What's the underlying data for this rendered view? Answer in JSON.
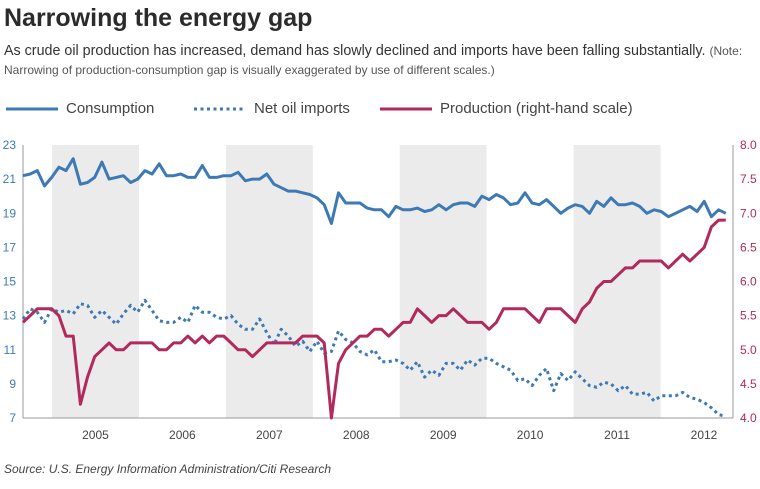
{
  "header": {
    "title": "Narrowing the energy gap",
    "subtitle_main": "As crude oil production has increased, demand has slowly declined and imports have been falling substantially.",
    "subtitle_note": "(Note: Narrowing of production-consumption gap is visually exaggerated by use of different scales.)"
  },
  "legend": {
    "consumption": "Consumption",
    "imports": "Net oil imports",
    "production": "Production (right-hand scale)"
  },
  "source": "Source: U.S. Energy Information Administration/Citi Research",
  "colors": {
    "consumption": "#3d7ab5",
    "imports": "#3d7ab5",
    "production": "#b22a5c",
    "left_axis": "#3d7ab5",
    "right_axis": "#b22a5c",
    "band": "#ebebeb"
  },
  "chart_data": {
    "type": "line",
    "x_start": "2004-09",
    "x_end": "2012-10",
    "x_ticks": [
      "2005",
      "2006",
      "2007",
      "2008",
      "2009",
      "2010",
      "2011",
      "2012"
    ],
    "shaded_years": [
      "2005",
      "2007",
      "2009",
      "2011"
    ],
    "y_left": {
      "ylim": [
        7,
        23
      ],
      "ticks": [
        7,
        9,
        11,
        13,
        15,
        17,
        19,
        21,
        23
      ]
    },
    "y_right": {
      "ylim": [
        4.0,
        8.0
      ],
      "ticks": [
        "4.0",
        "4.5",
        "5.0",
        "5.5",
        "6.0",
        "6.5",
        "7.0",
        "7.5",
        "8.0"
      ]
    },
    "legend_position": "top",
    "grid": false,
    "series": [
      {
        "name": "Consumption",
        "axis": "left",
        "style": "solid",
        "values": [
          21.2,
          21.3,
          21.5,
          20.6,
          21.1,
          21.7,
          21.5,
          22.2,
          20.7,
          20.8,
          21.1,
          22.0,
          21.0,
          21.1,
          21.2,
          20.8,
          21.0,
          21.5,
          21.3,
          21.9,
          21.2,
          21.2,
          21.3,
          21.1,
          21.1,
          21.8,
          21.1,
          21.1,
          21.2,
          21.2,
          21.4,
          20.9,
          21.0,
          21.0,
          21.3,
          20.7,
          20.5,
          20.3,
          20.3,
          20.2,
          20.1,
          19.9,
          19.5,
          18.4,
          20.2,
          19.6,
          19.6,
          19.6,
          19.3,
          19.2,
          19.2,
          18.8,
          19.4,
          19.2,
          19.2,
          19.3,
          19.1,
          19.2,
          19.5,
          19.2,
          19.5,
          19.6,
          19.6,
          19.4,
          20.0,
          19.8,
          20.1,
          19.9,
          19.5,
          19.6,
          20.2,
          19.6,
          19.5,
          19.8,
          19.4,
          19.0,
          19.3,
          19.5,
          19.4,
          19.0,
          19.7,
          19.4,
          19.9,
          19.5,
          19.5,
          19.6,
          19.4,
          19.0,
          19.2,
          19.1,
          18.8,
          19.0,
          19.2,
          19.4,
          19.1,
          19.7,
          18.8,
          19.2,
          19.0
        ]
      },
      {
        "name": "Net oil imports",
        "axis": "left",
        "style": "dotted",
        "values": [
          12.8,
          13.4,
          13.2,
          12.6,
          13.4,
          13.2,
          13.3,
          13.1,
          13.7,
          13.6,
          12.9,
          13.3,
          12.9,
          12.5,
          13.1,
          13.6,
          13.2,
          13.9,
          13.3,
          12.7,
          12.6,
          12.6,
          12.9,
          12.6,
          13.6,
          13.2,
          13.2,
          12.9,
          12.8,
          13.0,
          12.5,
          12.2,
          12.2,
          12.8,
          12.0,
          11.3,
          12.2,
          11.8,
          11.2,
          11.5,
          10.9,
          11.5,
          10.8,
          10.9,
          12.1,
          11.6,
          11.4,
          10.9,
          10.7,
          11.0,
          10.3,
          10.3,
          10.4,
          10.2,
          9.8,
          10.3,
          9.4,
          9.8,
          9.5,
          10.2,
          10.2,
          9.8,
          10.4,
          10.1,
          10.5,
          10.5,
          10.2,
          10.0,
          9.8,
          9.2,
          9.3,
          8.9,
          9.5,
          9.9,
          8.6,
          9.6,
          9.2,
          9.7,
          9.3,
          8.9,
          8.8,
          9.1,
          9.0,
          8.6,
          8.9,
          8.4,
          8.4,
          8.5,
          8.0,
          8.3,
          8.3,
          8.3,
          8.5,
          8.2,
          8.1,
          7.9,
          7.6,
          7.2,
          7.1
        ]
      },
      {
        "name": "Production (right-hand scale)",
        "axis": "right",
        "style": "solid",
        "values": [
          5.4,
          5.5,
          5.6,
          5.6,
          5.6,
          5.5,
          5.2,
          5.2,
          4.2,
          4.6,
          4.9,
          5.0,
          5.1,
          5.0,
          5.0,
          5.1,
          5.1,
          5.1,
          5.1,
          5.0,
          5.0,
          5.1,
          5.1,
          5.2,
          5.1,
          5.2,
          5.1,
          5.2,
          5.2,
          5.1,
          5.0,
          5.0,
          4.9,
          5.0,
          5.1,
          5.1,
          5.1,
          5.1,
          5.1,
          5.2,
          5.2,
          5.2,
          5.1,
          4.0,
          4.8,
          5.0,
          5.1,
          5.2,
          5.2,
          5.3,
          5.3,
          5.2,
          5.3,
          5.4,
          5.4,
          5.6,
          5.5,
          5.4,
          5.5,
          5.5,
          5.6,
          5.5,
          5.4,
          5.4,
          5.4,
          5.3,
          5.4,
          5.6,
          5.6,
          5.6,
          5.6,
          5.5,
          5.4,
          5.6,
          5.6,
          5.6,
          5.5,
          5.4,
          5.6,
          5.7,
          5.9,
          6.0,
          6.0,
          6.1,
          6.2,
          6.2,
          6.3,
          6.3,
          6.3,
          6.3,
          6.2,
          6.3,
          6.4,
          6.3,
          6.4,
          6.5,
          6.8,
          6.9,
          6.9
        ]
      }
    ]
  }
}
